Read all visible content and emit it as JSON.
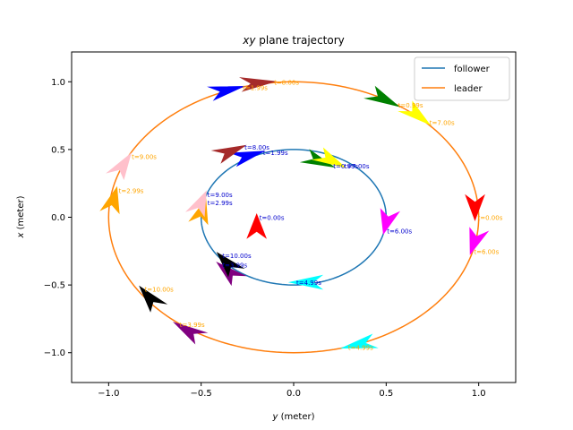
{
  "chart_data": {
    "type": "line",
    "title_main": "xy",
    "title_rest": " plane trajectory",
    "xlabel_var": "y",
    "xlabel_unit": " (meter)",
    "ylabel_var": "x",
    "ylabel_unit": " (meter)",
    "xlim": [
      -1.2,
      1.2
    ],
    "ylim": [
      -1.22,
      1.22
    ],
    "xticks": [
      -1.0,
      -0.5,
      0.0,
      0.5,
      1.0
    ],
    "xtick_labels": [
      "−1.0",
      "−0.5",
      "0.0",
      "0.5",
      "1.0"
    ],
    "yticks": [
      -1.0,
      -0.5,
      0.0,
      0.5,
      1.0
    ],
    "ytick_labels": [
      "−1.0",
      "−0.5",
      "0.0",
      "0.5",
      "1.0"
    ],
    "grid": false,
    "legend_position": "top-right",
    "series": [
      {
        "name": "follower",
        "color": "#1f77b4",
        "path": "ellipse",
        "center": [
          0.0,
          0.0
        ],
        "semi_axis_y": 0.5,
        "semi_axis_x": 0.5,
        "points": [
          {
            "t": "t=0.00s",
            "y": -0.2,
            "x": 0.0,
            "color": "#ff0000"
          },
          {
            "t": "t=0.99s",
            "y": 0.2,
            "x": 0.38,
            "color": "#008000"
          },
          {
            "t": "t=1.99s",
            "y": -0.18,
            "x": 0.48,
            "color": "#0000ff"
          },
          {
            "t": "t=2.99s",
            "y": -0.48,
            "x": 0.11,
            "color": "#ffa500"
          },
          {
            "t": "t=3.99s",
            "y": -0.4,
            "x": -0.35,
            "color": "#800080"
          },
          {
            "t": "t=4.99s",
            "y": 0.0,
            "x": -0.48,
            "color": "#00ffff"
          },
          {
            "t": "t=6.00s",
            "y": 0.49,
            "x": -0.1,
            "color": "#ff00ff"
          },
          {
            "t": "t=7.00s",
            "y": 0.26,
            "x": 0.38,
            "color": "#ffff00"
          },
          {
            "t": "t=8.00s",
            "y": -0.28,
            "x": 0.52,
            "color": "#a52a2a"
          },
          {
            "t": "t=9.00s",
            "y": -0.48,
            "x": 0.17,
            "color": "#ffc0cb"
          },
          {
            "t": "t=10.00s",
            "y": -0.4,
            "x": -0.28,
            "color": "#000000"
          }
        ]
      },
      {
        "name": "leader",
        "color": "#ff7f0e",
        "path": "ellipse",
        "center": [
          0.0,
          0.0
        ],
        "semi_axis_y": 1.0,
        "semi_axis_x": 1.0,
        "points": [
          {
            "t": "t=0.00s",
            "y": 0.98,
            "x": 0.0,
            "color": "#ff0000"
          },
          {
            "t": "t=0.99s",
            "y": 0.55,
            "x": 0.83,
            "color": "#008000"
          },
          {
            "t": "t=1.99s",
            "y": -0.29,
            "x": 0.96,
            "color": "#0000ff"
          },
          {
            "t": "t=2.99s",
            "y": -0.96,
            "x": 0.2,
            "color": "#ffa500"
          },
          {
            "t": "t=3.99s",
            "y": -0.63,
            "x": -0.79,
            "color": "#800080"
          },
          {
            "t": "t=4.99s",
            "y": 0.28,
            "x": -0.96,
            "color": "#00ffff"
          },
          {
            "t": "t=6.00s",
            "y": 0.96,
            "x": -0.25,
            "color": "#ff00ff"
          },
          {
            "t": "t=7.00s",
            "y": 0.72,
            "x": 0.7,
            "color": "#ffff00"
          },
          {
            "t": "t=8.00s",
            "y": -0.12,
            "x": 1.0,
            "color": "#a52a2a"
          },
          {
            "t": "t=9.00s",
            "y": -0.89,
            "x": 0.45,
            "color": "#ffc0cb"
          },
          {
            "t": "t=10.00s",
            "y": -0.82,
            "x": -0.53,
            "color": "#000000"
          }
        ]
      }
    ]
  }
}
